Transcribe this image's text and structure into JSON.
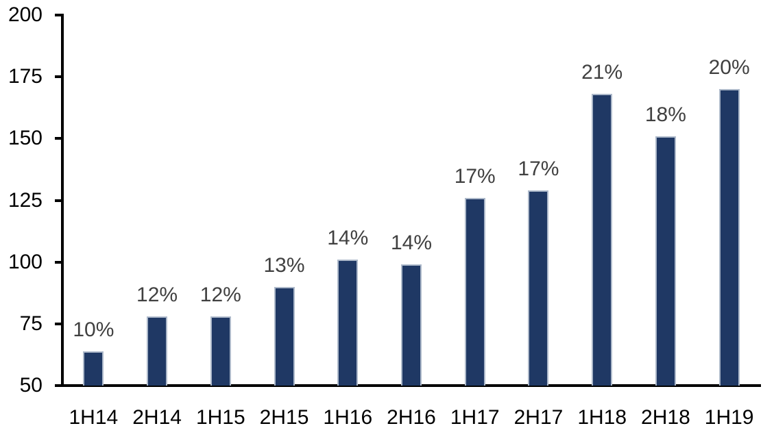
{
  "chart_data": {
    "type": "bar",
    "title": "",
    "xlabel": "",
    "ylabel": "",
    "categories": [
      "1H14",
      "2H14",
      "1H15",
      "2H15",
      "1H16",
      "2H16",
      "1H17",
      "2H17",
      "1H18",
      "2H18",
      "1H19"
    ],
    "values": [
      64,
      78,
      78,
      90,
      101,
      99,
      126,
      129,
      168,
      151,
      170
    ],
    "data_labels": [
      "10%",
      "12%",
      "12%",
      "13%",
      "14%",
      "14%",
      "17%",
      "17%",
      "21%",
      "18%",
      "20%"
    ],
    "ylim": [
      50,
      200
    ],
    "yticks": [
      50,
      75,
      100,
      125,
      150,
      175,
      200
    ],
    "grid": false,
    "legend": false,
    "colors": {
      "bar_fill": "#1F3864",
      "bar_border": "#ADB9CA",
      "data_label": "#404040",
      "axis": "#000000",
      "background": "#FFFFFF"
    }
  }
}
